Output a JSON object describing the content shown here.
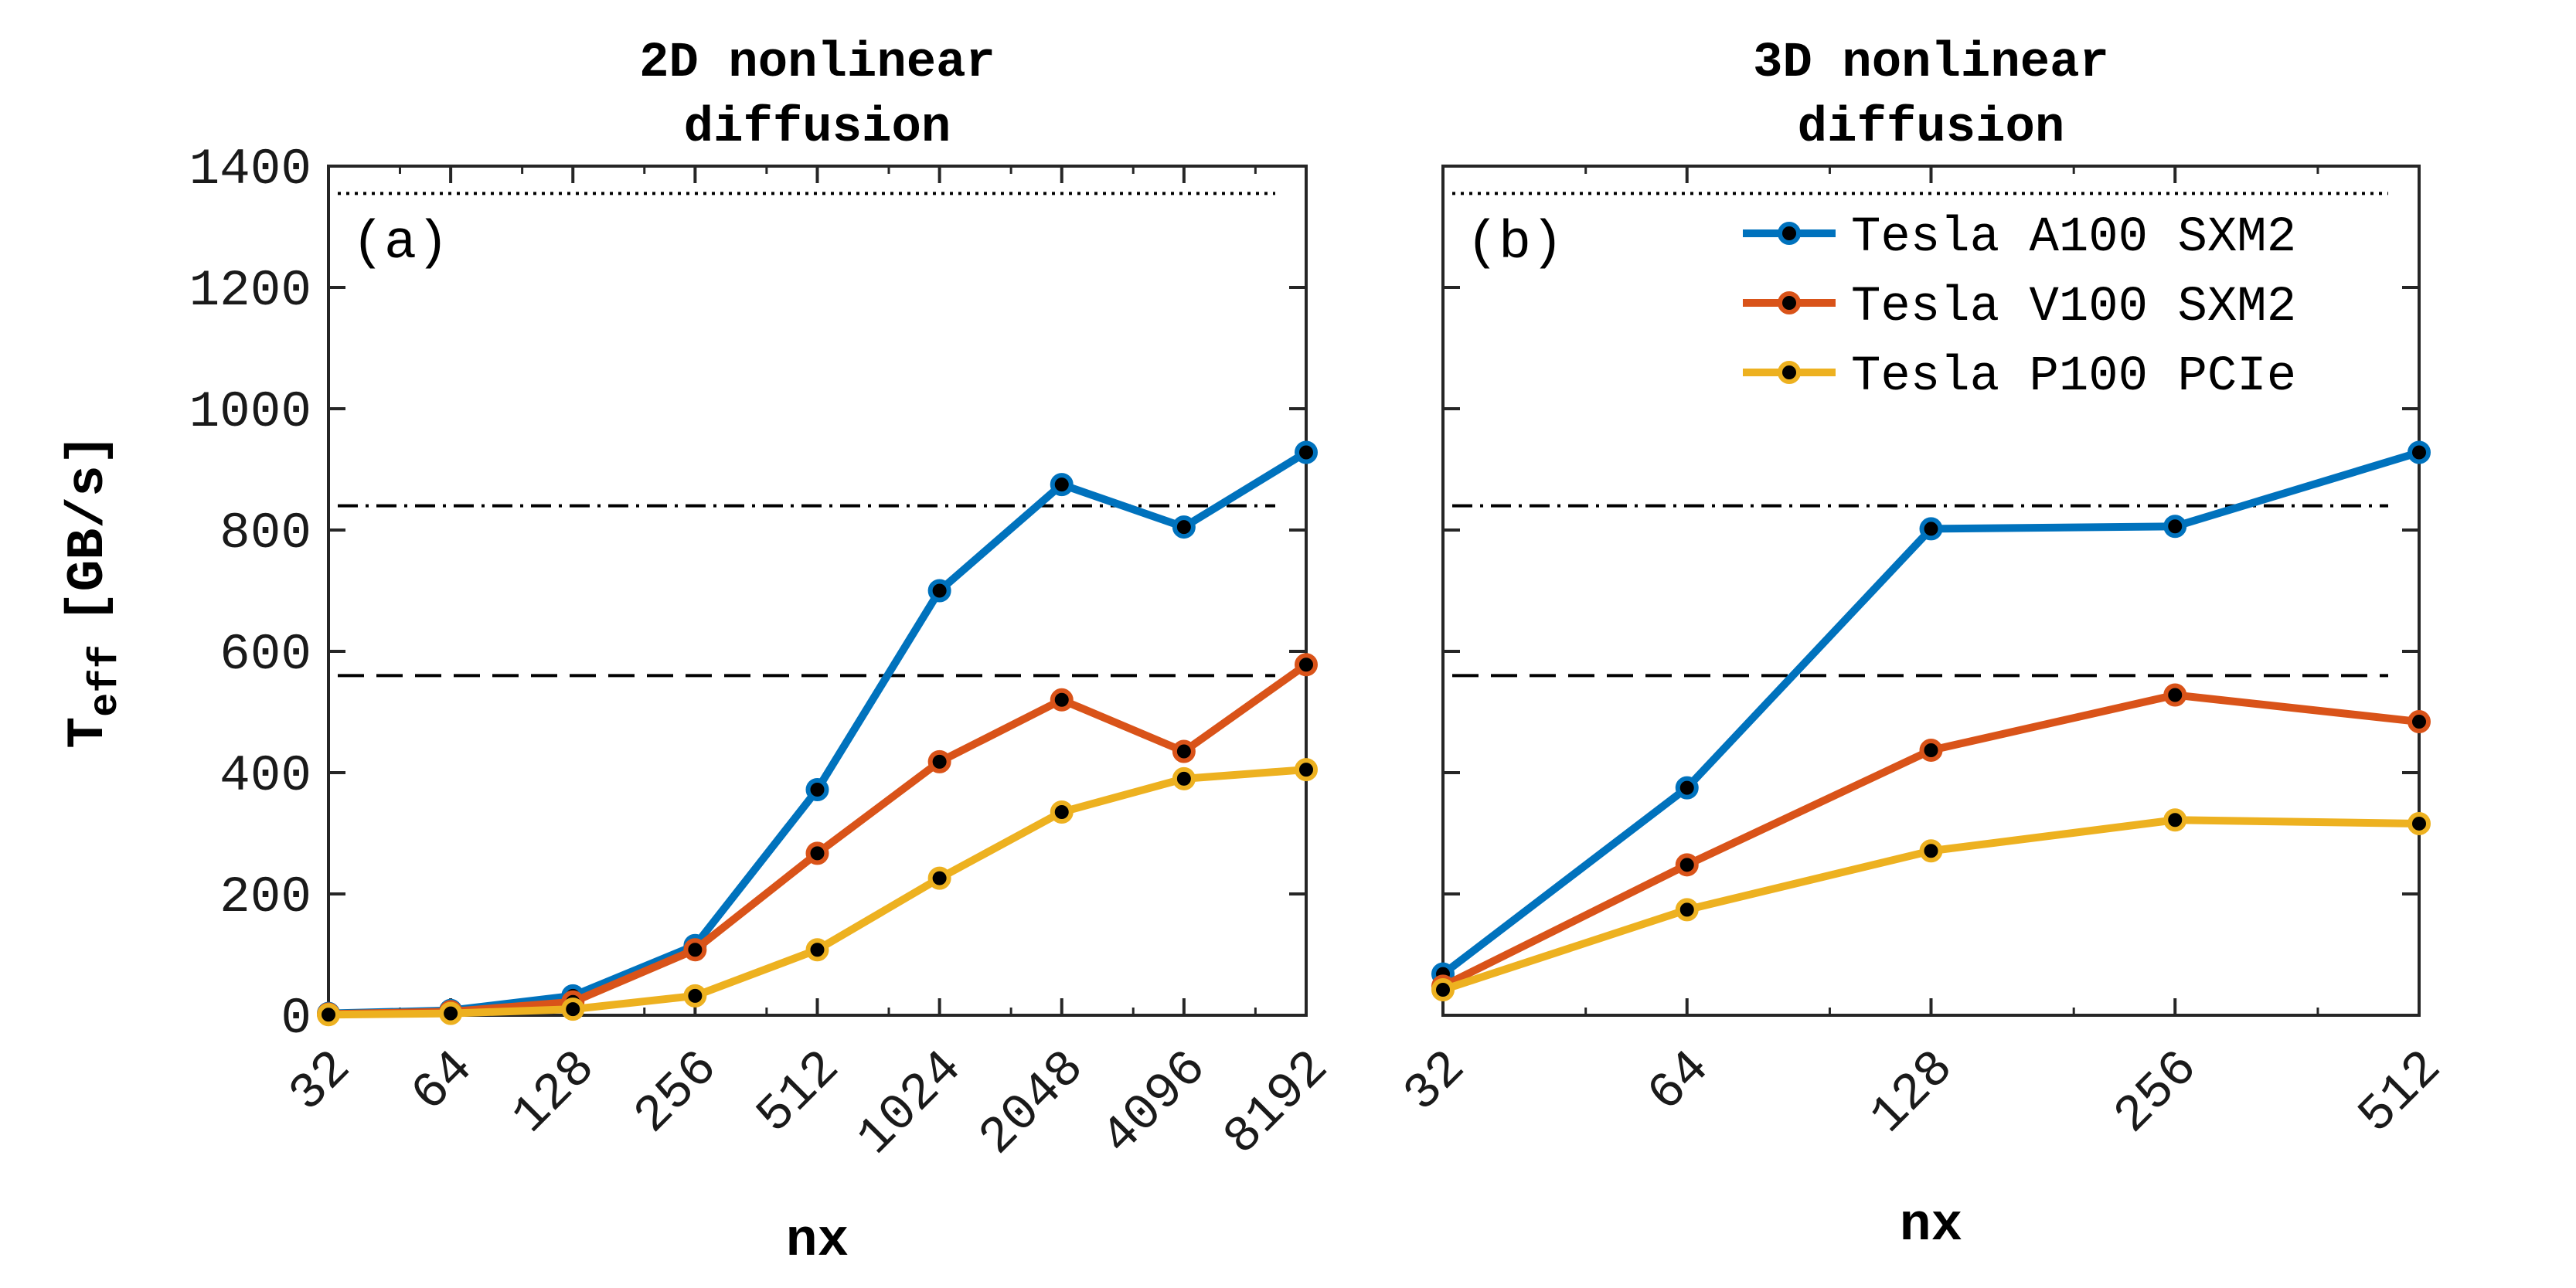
{
  "chart_data": [
    {
      "type": "line",
      "title_lines": [
        "2D nonlinear",
        "diffusion"
      ],
      "panel_label": "(a)",
      "xlabel": "nx",
      "ylabel": "T",
      "ylabel_sub": "eff",
      "ylabel_units": "[GB/s]",
      "x_scale": "log2",
      "categories": [
        "32",
        "64",
        "128",
        "256",
        "512",
        "1024",
        "2048",
        "4096",
        "8192"
      ],
      "x": [
        32,
        64,
        128,
        256,
        512,
        1024,
        2048,
        4096,
        8192
      ],
      "ylim": [
        0,
        1400
      ],
      "yticks": [
        0,
        200,
        400,
        600,
        800,
        1000,
        1200,
        1400
      ],
      "reference_lines": [
        {
          "y": 1355,
          "style": "dotted"
        },
        {
          "y": 840,
          "style": "dashdot"
        },
        {
          "y": 560,
          "style": "dashed"
        }
      ],
      "series": [
        {
          "name": "Tesla A100 SXM2",
          "color": "#0072BD",
          "values": [
            3,
            8,
            32,
            115,
            372,
            700,
            875,
            805,
            928
          ]
        },
        {
          "name": "Tesla V100 SXM2",
          "color": "#D95319",
          "values": [
            2,
            6,
            22,
            108,
            267,
            418,
            520,
            435,
            578
          ]
        },
        {
          "name": "Tesla P100 PCIe",
          "color": "#EDB120",
          "values": [
            1,
            3,
            10,
            32,
            108,
            226,
            335,
            390,
            405
          ]
        }
      ]
    },
    {
      "type": "line",
      "title_lines": [
        "3D nonlinear",
        "diffusion"
      ],
      "panel_label": "(b)",
      "xlabel": "nx",
      "x_scale": "log2",
      "categories": [
        "32",
        "64",
        "128",
        "256",
        "512"
      ],
      "x": [
        32,
        64,
        128,
        256,
        512
      ],
      "ylim": [
        0,
        1400
      ],
      "yticks": [
        0,
        200,
        400,
        600,
        800,
        1000,
        1200,
        1400
      ],
      "reference_lines": [
        {
          "y": 1355,
          "style": "dotted"
        },
        {
          "y": 840,
          "style": "dashdot"
        },
        {
          "y": 560,
          "style": "dashed"
        }
      ],
      "legend": "top-right",
      "series": [
        {
          "name": "Tesla A100 SXM2",
          "color": "#0072BD",
          "values": [
            68,
            375,
            802,
            806,
            928
          ]
        },
        {
          "name": "Tesla V100 SXM2",
          "color": "#D95319",
          "values": [
            48,
            248,
            437,
            528,
            484
          ]
        },
        {
          "name": "Tesla P100 PCIe",
          "color": "#EDB120",
          "values": [
            42,
            174,
            271,
            322,
            316
          ]
        }
      ]
    }
  ]
}
